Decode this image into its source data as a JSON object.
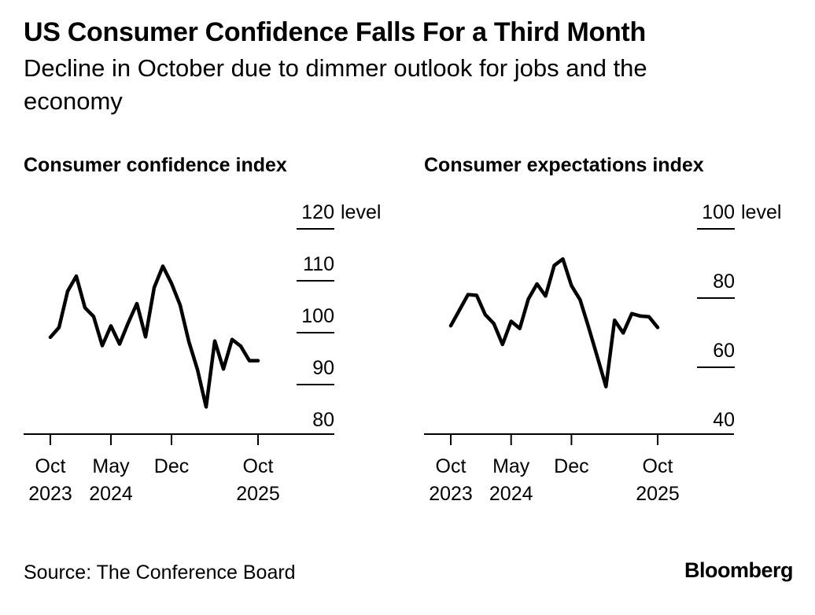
{
  "title": "US Consumer Confidence Falls For a Third Month",
  "subtitle": "Decline in October due to dimmer outlook for jobs and the economy",
  "source": "Source: The Conference Board",
  "logo_text": "Bloomberg",
  "colors": {
    "line": "#000000",
    "axis": "#000000",
    "background": "#ffffff"
  },
  "chart_data": [
    {
      "type": "line",
      "title": "Consumer confidence index",
      "ylabel": "level",
      "ylim": [
        80,
        120
      ],
      "yticks": [
        120,
        110,
        100,
        90,
        80
      ],
      "x_tick_labels": [
        {
          "month": "Oct",
          "year": "2023",
          "index": 0
        },
        {
          "month": "May",
          "year": "2024",
          "index": 7
        },
        {
          "month": "Dec",
          "year": "",
          "index": 14
        },
        {
          "month": "Oct",
          "year": "2025",
          "index": 24
        }
      ],
      "x": [
        "Oct 2023",
        "Nov 2023",
        "Dec 2023",
        "Jan 2024",
        "Feb 2024",
        "Mar 2024",
        "Apr 2024",
        "May 2024",
        "Jun 2024",
        "Jul 2024",
        "Aug 2024",
        "Sep 2024",
        "Oct 2024",
        "Nov 2024",
        "Dec 2024",
        "Jan 2025",
        "Feb 2025",
        "Mar 2025",
        "Apr 2025",
        "May 2025",
        "Jun 2025",
        "Jul 2025",
        "Aug 2025",
        "Sep 2025",
        "Oct 2025"
      ],
      "values": [
        99.1,
        101.0,
        108.0,
        110.9,
        104.8,
        103.1,
        97.5,
        101.3,
        97.8,
        101.9,
        105.6,
        99.2,
        108.7,
        112.8,
        109.5,
        105.3,
        98.3,
        92.9,
        85.7,
        98.4,
        93.0,
        98.7,
        97.4,
        94.6,
        94.6
      ]
    },
    {
      "type": "line",
      "title": "Consumer expectations index",
      "ylabel": "level",
      "ylim": [
        40,
        100
      ],
      "yticks": [
        100,
        80,
        60,
        40
      ],
      "x_tick_labels": [
        {
          "month": "Oct",
          "year": "2023",
          "index": 0
        },
        {
          "month": "May",
          "year": "2024",
          "index": 7
        },
        {
          "month": "Dec",
          "year": "",
          "index": 14
        },
        {
          "month": "Oct",
          "year": "2025",
          "index": 24
        }
      ],
      "x": [
        "Oct 2023",
        "Nov 2023",
        "Dec 2023",
        "Jan 2024",
        "Feb 2024",
        "Mar 2024",
        "Apr 2024",
        "May 2024",
        "Jun 2024",
        "Jul 2024",
        "Aug 2024",
        "Sep 2024",
        "Oct 2024",
        "Nov 2024",
        "Dec 2024",
        "Jan 2025",
        "Feb 2025",
        "Mar 2025",
        "Apr 2025",
        "May 2025",
        "Jun 2025",
        "Jul 2025",
        "Aug 2025",
        "Sep 2025",
        "Oct 2025"
      ],
      "values": [
        72.0,
        76.5,
        81.0,
        80.8,
        75.2,
        72.6,
        66.6,
        73.3,
        71.2,
        79.7,
        84.1,
        80.6,
        89.4,
        91.3,
        83.6,
        79.5,
        71.5,
        63.0,
        54.4,
        73.6,
        69.9,
        75.5,
        74.8,
        74.6,
        71.5
      ]
    }
  ]
}
